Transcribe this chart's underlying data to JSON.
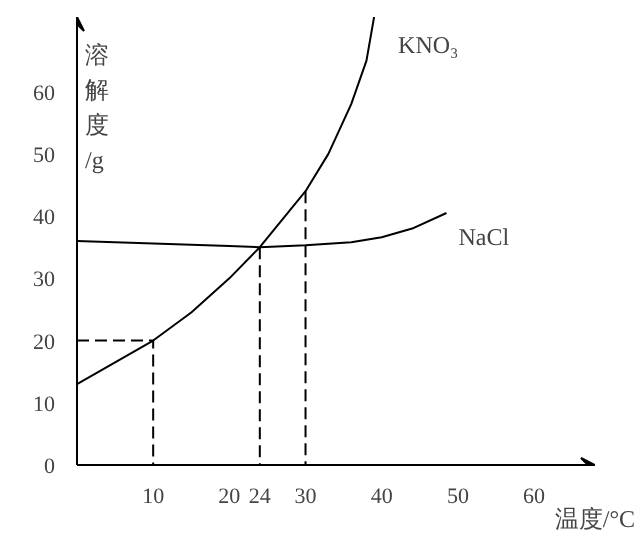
{
  "chart_data": {
    "type": "line",
    "xlabel": "温度/°C",
    "ylabel": "溶解度/g",
    "xlim": [
      0,
      68
    ],
    "ylim": [
      0,
      72
    ],
    "xticks": [
      10,
      20,
      24,
      30,
      40,
      50,
      60
    ],
    "yticks": [
      0,
      10,
      20,
      30,
      40,
      50,
      60
    ],
    "grid": false,
    "series": [
      {
        "name": "KNO₃",
        "color": "#000000",
        "x": [
          0,
          5,
          10,
          15,
          20,
          24,
          27,
          30,
          33,
          36,
          38,
          39
        ],
        "values": [
          13,
          16.5,
          20,
          24.5,
          30,
          35,
          39.5,
          44,
          50,
          58,
          65,
          72
        ]
      },
      {
        "name": "NaCl",
        "color": "#000000",
        "x": [
          0,
          10,
          20,
          24,
          30,
          36,
          40,
          44,
          48.5
        ],
        "values": [
          36,
          35.6,
          35.2,
          35,
          35.3,
          35.8,
          36.6,
          38,
          40.5
        ]
      },
      {
        "color": "#000000",
        "line_style": "dashed",
        "x": [
          0,
          10,
          10
        ],
        "values": [
          20,
          20,
          0
        ]
      },
      {
        "color": "#000000",
        "line_style": "dashed",
        "x": [
          24,
          24
        ],
        "values": [
          35,
          0
        ]
      },
      {
        "color": "#000000",
        "line_style": "dashed",
        "x": [
          30,
          30
        ],
        "values": [
          44,
          0
        ]
      }
    ]
  }
}
